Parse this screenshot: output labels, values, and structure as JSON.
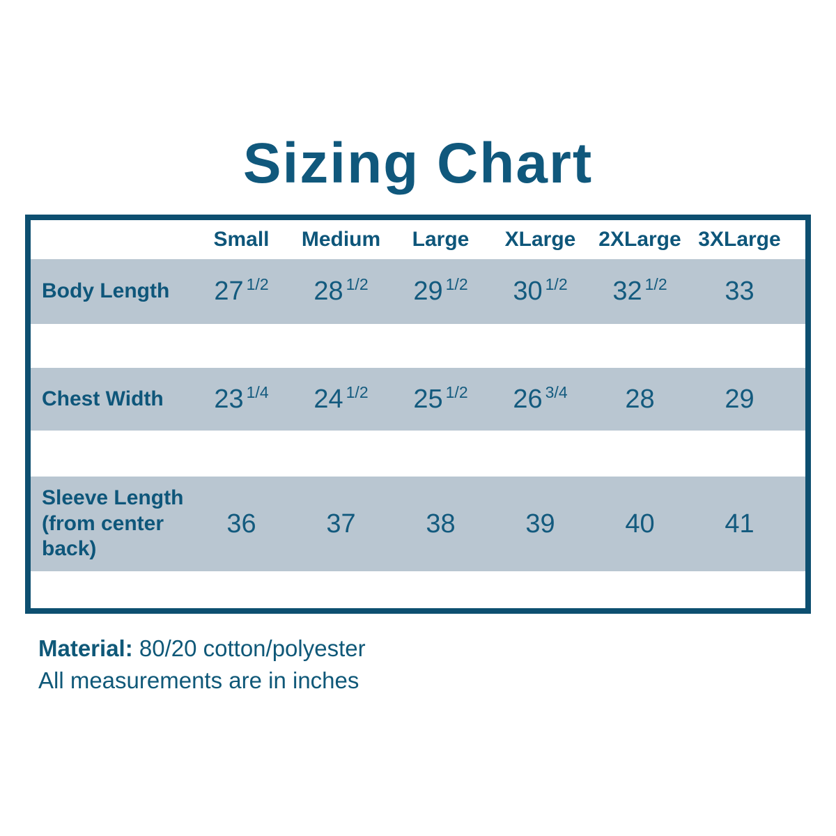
{
  "page": {
    "title": "Sizing Chart"
  },
  "colors": {
    "text_teal": "#135a7e",
    "border_teal": "#0d4f70",
    "row_band": "#b9c6d1",
    "background": "#ffffff"
  },
  "table": {
    "columns": [
      "Small",
      "Medium",
      "Large",
      "XLarge",
      "2XLarge",
      "3XLarge"
    ],
    "rows": [
      {
        "label": "Body Length",
        "values": [
          {
            "n": "27",
            "f": "1/2"
          },
          {
            "n": "28",
            "f": "1/2"
          },
          {
            "n": "29",
            "f": "1/2"
          },
          {
            "n": "30",
            "f": "1/2"
          },
          {
            "n": "32",
            "f": "1/2"
          },
          {
            "n": "33",
            "f": ""
          }
        ]
      },
      {
        "label": "Chest Width",
        "values": [
          {
            "n": "23",
            "f": "1/4"
          },
          {
            "n": "24",
            "f": "1/2"
          },
          {
            "n": "25",
            "f": "1/2"
          },
          {
            "n": "26",
            "f": "3/4"
          },
          {
            "n": "28",
            "f": ""
          },
          {
            "n": "29",
            "f": ""
          }
        ]
      },
      {
        "label": "Sleeve Length (from center back)",
        "values": [
          {
            "n": "36",
            "f": ""
          },
          {
            "n": "37",
            "f": ""
          },
          {
            "n": "38",
            "f": ""
          },
          {
            "n": "39",
            "f": ""
          },
          {
            "n": "40",
            "f": ""
          },
          {
            "n": "41",
            "f": ""
          }
        ]
      }
    ]
  },
  "footer": {
    "material_label": "Material:",
    "material_value": "80/20 cotton/polyester",
    "note": "All measurements are in inches"
  },
  "chart_data": {
    "type": "table",
    "title": "Sizing Chart",
    "columns": [
      "",
      "Small",
      "Medium",
      "Large",
      "XLarge",
      "2XLarge",
      "3XLarge"
    ],
    "rows": [
      [
        "Body Length",
        "27 1/2",
        "28 1/2",
        "29 1/2",
        "30 1/2",
        "32 1/2",
        "33"
      ],
      [
        "Chest Width",
        "23 1/4",
        "24 1/2",
        "25 1/2",
        "26 3/4",
        "28",
        "29"
      ],
      [
        "Sleeve Length (from center back)",
        "36",
        "37",
        "38",
        "39",
        "40",
        "41"
      ]
    ],
    "notes": [
      "Material: 80/20 cotton/polyester",
      "All measurements are in inches"
    ],
    "layout_hints": {
      "banded_rows": true,
      "band_color": "#b9c6d1",
      "border_color": "#0d4f70",
      "units": "inches"
    }
  }
}
